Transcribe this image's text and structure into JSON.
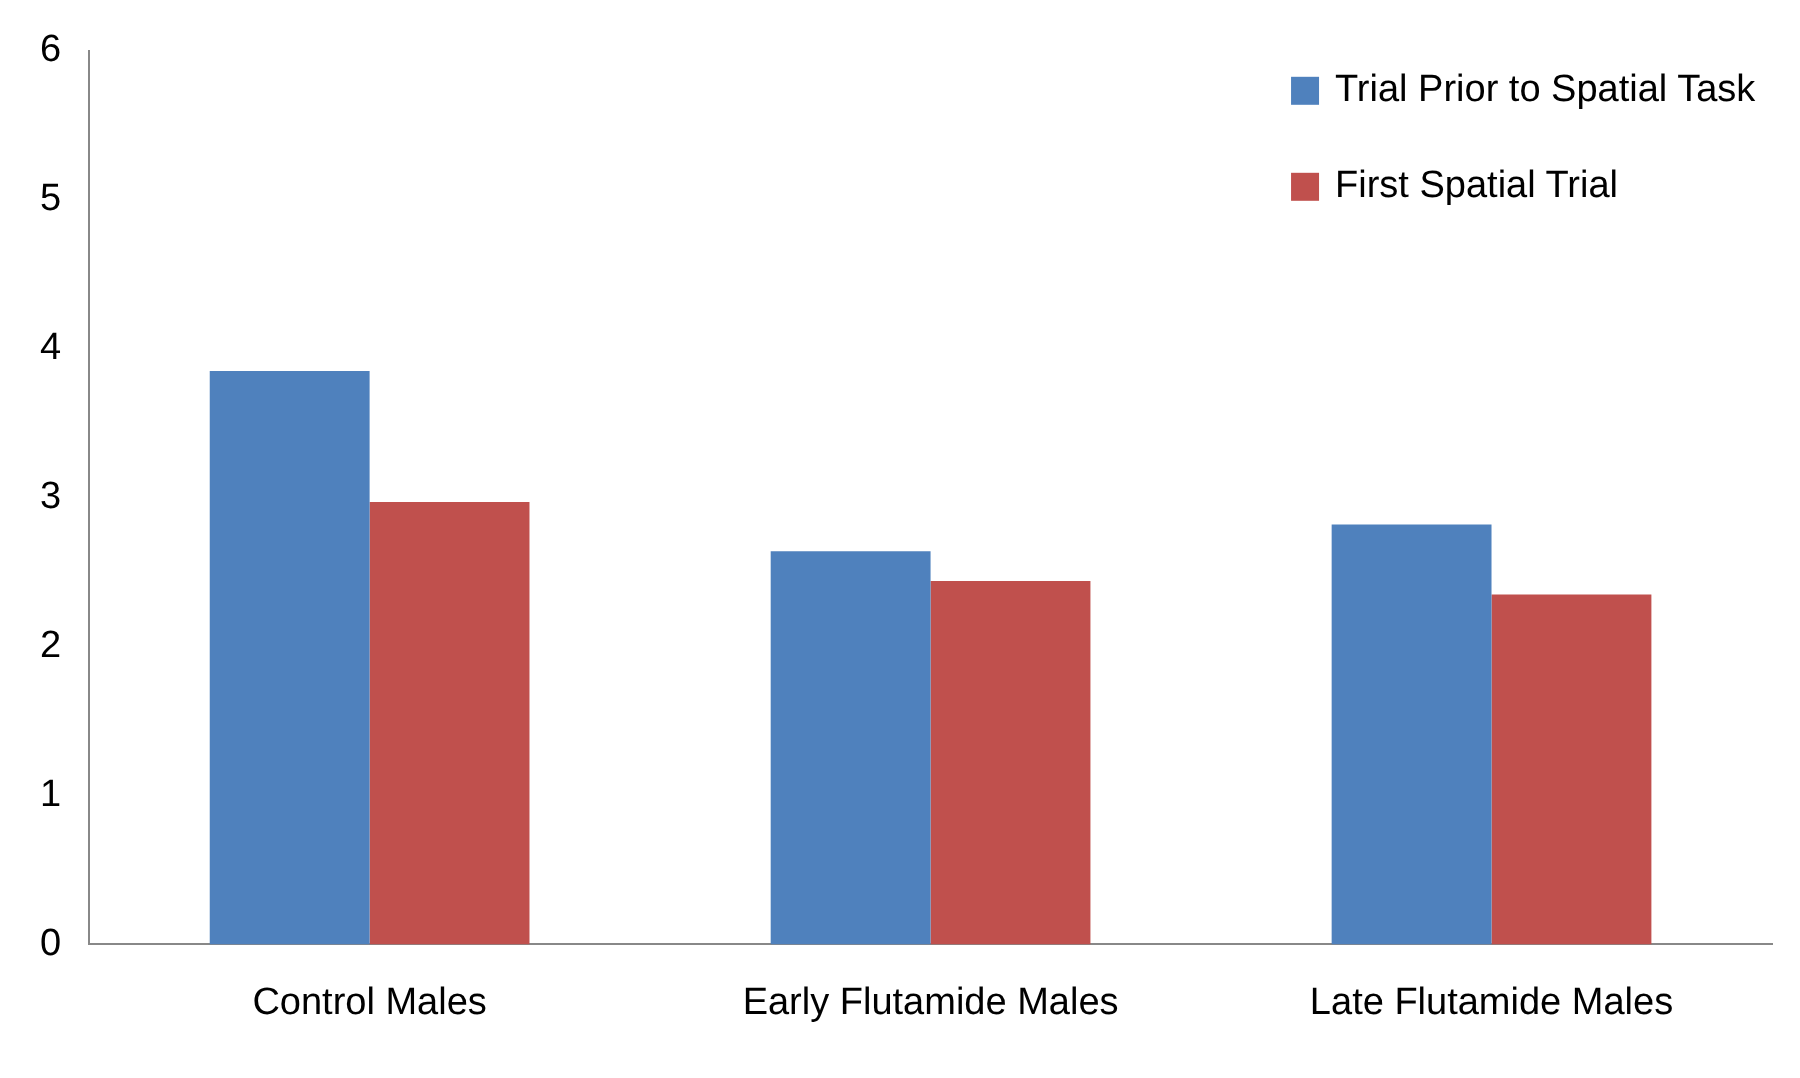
{
  "chart_data": {
    "type": "bar",
    "categories": [
      "Control Males",
      "Early Flutamide Males",
      "Late Flutamide Males"
    ],
    "series": [
      {
        "name": "Trial Prior to Spatial Task",
        "color": "#4f81bd",
        "values": [
          3.85,
          2.64,
          2.82
        ]
      },
      {
        "name": "First Spatial Trial",
        "color": "#c0504d",
        "values": [
          2.97,
          2.44,
          2.35
        ]
      }
    ],
    "ylim": [
      0,
      6
    ],
    "yticks": [
      0,
      1,
      2,
      3,
      4,
      5,
      6
    ],
    "grid": false,
    "legend": "top right"
  }
}
